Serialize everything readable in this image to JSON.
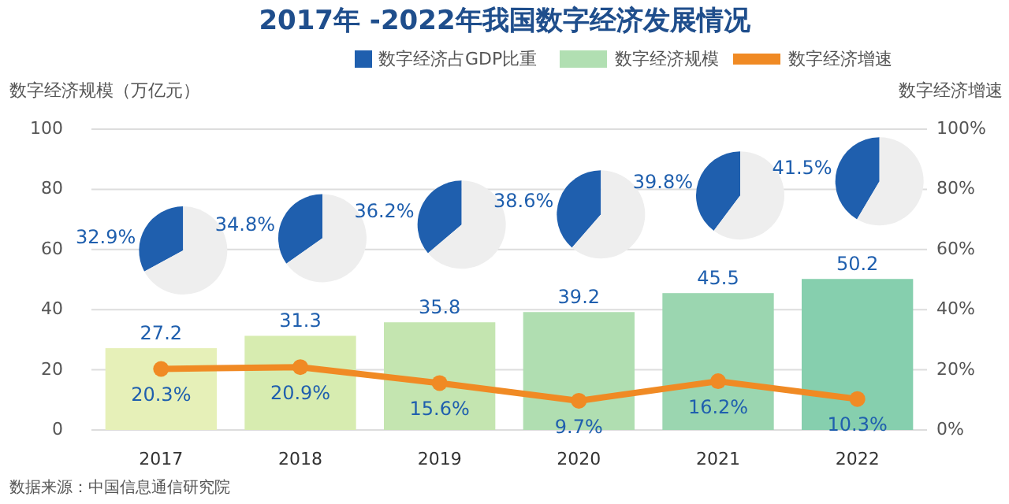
{
  "chart_data": [
    {
      "type": "bar",
      "title": "2017年 -2022年我国数字经济发展情况",
      "ylabel": "数字经济规模（万亿元）",
      "y2label": "数字经济增速",
      "categories": [
        "2017",
        "2018",
        "2019",
        "2020",
        "2021",
        "2022"
      ],
      "series": [
        {
          "name": "数字经济规模",
          "type": "bar",
          "color": "#b1dfb2",
          "colors": [
            "#e6f0b8",
            "#d7ecb0",
            "#c4e5b0",
            "#b0deb1",
            "#9bd6b0",
            "#86cfae"
          ],
          "values": [
            27.2,
            31.3,
            35.8,
            39.2,
            45.5,
            50.2
          ]
        },
        {
          "name": "数字经济增速",
          "type": "line",
          "axis": "y2",
          "color": "#f08a24",
          "values": [
            20.3,
            20.9,
            15.6,
            9.7,
            16.2,
            10.3
          ],
          "value_labels": [
            "20.3%",
            "20.9%",
            "15.6%",
            "9.7%",
            "16.2%",
            "10.3%"
          ]
        }
      ],
      "ylim": [
        0,
        100
      ],
      "yticks": [
        0,
        20,
        40,
        60,
        80,
        100
      ],
      "y2lim": [
        0,
        100
      ],
      "y2ticks": [
        {
          "value": 0,
          "label": "0%"
        },
        {
          "value": 20,
          "label": "20%"
        },
        {
          "value": 40,
          "label": "40%"
        },
        {
          "value": 60,
          "label": "60%"
        },
        {
          "value": 80,
          "label": "80%"
        },
        {
          "value": 100,
          "label": "100%"
        }
      ],
      "grid": "y",
      "legend": "top",
      "marker": "circle",
      "data_labels": true,
      "annotations": [
        "数据来源：中国信息通信研究院"
      ]
    },
    {
      "type": "pie",
      "categories": [
        "数字经济占GDP比重",
        null
      ],
      "values": [
        32.9,
        67.1
      ],
      "colors": [
        "#1f5fae",
        "#eeeeee"
      ],
      "value_labels": [
        "32.9%",
        null
      ],
      "legend": "top"
    },
    {
      "type": "pie",
      "categories": [
        null,
        null
      ],
      "values": [
        34.8,
        65.2
      ],
      "colors": [
        "#1f5fae",
        "#eeeeee"
      ],
      "value_labels": [
        "34.8%",
        null
      ]
    },
    {
      "type": "pie",
      "categories": [
        null,
        null
      ],
      "values": [
        36.2,
        63.8
      ],
      "colors": [
        "#1f5fae",
        "#eeeeee"
      ],
      "value_labels": [
        "36.2%",
        null
      ]
    },
    {
      "type": "pie",
      "categories": [
        null,
        null
      ],
      "values": [
        38.6,
        61.4
      ],
      "colors": [
        "#1f5fae",
        "#eeeeee"
      ],
      "value_labels": [
        "38.6%",
        null
      ]
    },
    {
      "type": "pie",
      "categories": [
        null,
        null
      ],
      "values": [
        39.8,
        60.2
      ],
      "colors": [
        "#1f5fae",
        "#eeeeee"
      ],
      "value_labels": [
        "39.8%",
        null
      ]
    },
    {
      "type": "pie",
      "categories": [
        null,
        null
      ],
      "values": [
        41.5,
        58.5
      ],
      "colors": [
        "#1f5fae",
        "#eeeeee"
      ],
      "value_labels": [
        "41.5%",
        null
      ]
    }
  ]
}
